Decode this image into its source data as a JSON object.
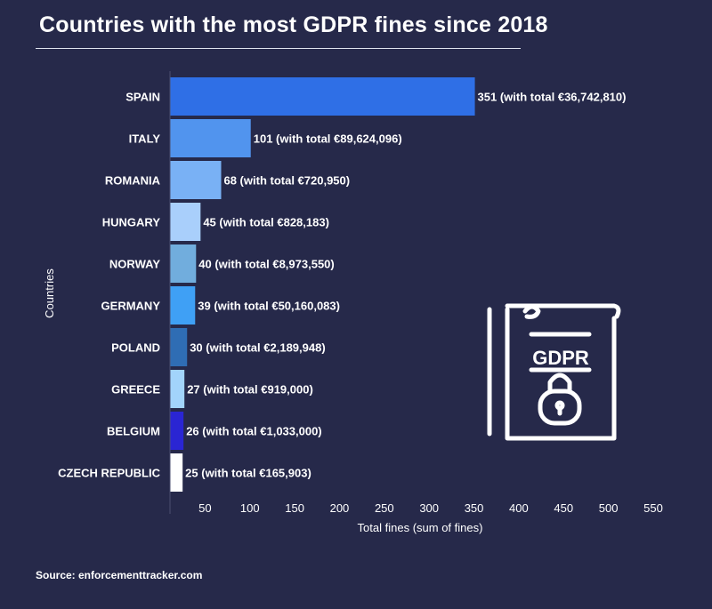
{
  "title": "Countries with the most GDPR fines since 2018",
  "source": "Source: enforcementtracker.com",
  "icon": {
    "name": "gdpr-document-lock-icon",
    "label": "GDPR"
  },
  "chart_data": {
    "type": "bar",
    "orientation": "horizontal",
    "title": "Countries with the most GDPR fines since 2018",
    "xlabel": "Total fines (sum of fines)",
    "ylabel": "Countries",
    "xlim": [
      0,
      550
    ],
    "xticks": [
      50,
      100,
      150,
      200,
      250,
      300,
      350,
      400,
      450,
      500,
      550
    ],
    "grid": false,
    "categories": [
      "SPAIN",
      "ITALY",
      "ROMANIA",
      "HUNGARY",
      "NORWAY",
      "GERMANY",
      "POLAND",
      "GREECE",
      "BELGIUM",
      "CZECH REPUBLIC"
    ],
    "values": [
      351,
      101,
      68,
      45,
      40,
      39,
      30,
      27,
      26,
      25
    ],
    "data_labels": [
      "351 (with total €36,742,810)",
      "101 (with total €89,624,096)",
      "68 (with total €720,950)",
      "45 (with total €828,183)",
      "40 (with total €8,973,550)",
      "39 (with total €50,160,083)",
      "30 (with total €2,189,948)",
      "27 (with total €919,000)",
      "26 (with total €1,033,000)",
      "25 (with total €165,903)"
    ],
    "colors": [
      "#2f6fe6",
      "#5194ee",
      "#79b1f5",
      "#a9cffb",
      "#71addd",
      "#3fa0f5",
      "#2f6db4",
      "#a2d4fb",
      "#2a25d3",
      "#ffffff"
    ]
  }
}
